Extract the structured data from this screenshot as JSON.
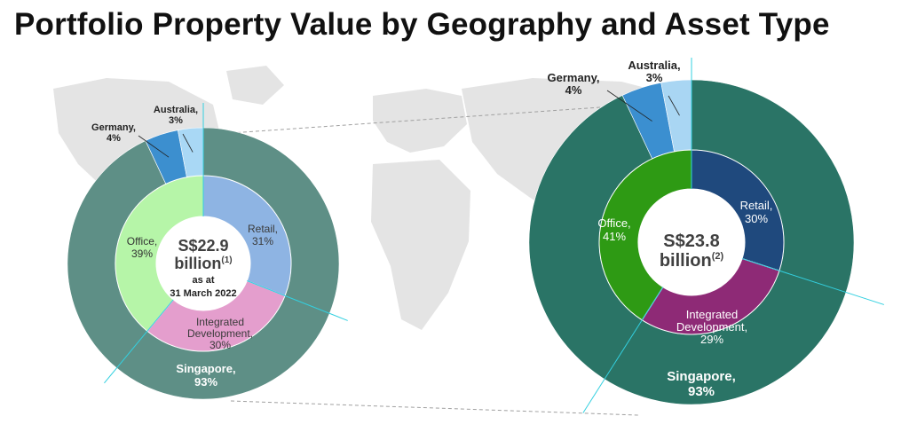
{
  "title": "Portfolio Property Value by Geography and Asset Type",
  "colors": {
    "left_singapore": "#5e8f86",
    "left_germany": "#3c8fcf",
    "left_australia": "#a9d8f5",
    "left_retail": "#8eb4e3",
    "left_integrated": "#e49ecd",
    "left_office": "#b6f5a8",
    "right_singapore": "#2a7466",
    "right_germany": "#3b8fd0",
    "right_australia": "#a9d6f3",
    "right_retail": "#1f497d",
    "right_integrated": "#8e2a76",
    "right_office": "#2e9a14",
    "map": "#e4e4e4"
  },
  "chart_data": [
    {
      "type": "pie",
      "variant": "nested-donut",
      "title": "",
      "center_text": {
        "value": "S$22.9",
        "unit": "billion",
        "note": "(1)",
        "sub1": "as at",
        "sub2": "31 March 2022"
      },
      "outer_ring": {
        "dimension": "Geography",
        "slices": [
          {
            "name": "Singapore",
            "value": 93,
            "label": "Singapore,",
            "pct_label": "93%"
          },
          {
            "name": "Germany",
            "value": 4,
            "label": "Germany,",
            "pct_label": "4%"
          },
          {
            "name": "Australia",
            "value": 3,
            "label": "Australia,",
            "pct_label": "3%"
          }
        ]
      },
      "inner_ring": {
        "dimension": "Asset Type",
        "slices": [
          {
            "name": "Retail",
            "value": 31,
            "label": "Retail,",
            "pct_label": "31%"
          },
          {
            "name": "Integrated Development",
            "value": 30,
            "label": "Integrated",
            "label2": "Development,",
            "pct_label": "30%"
          },
          {
            "name": "Office",
            "value": 39,
            "label": "Office,",
            "pct_label": "39%"
          }
        ]
      }
    },
    {
      "type": "pie",
      "variant": "nested-donut",
      "title": "",
      "center_text": {
        "value": "S$23.8",
        "unit": "billion",
        "note": "(2)"
      },
      "outer_ring": {
        "dimension": "Geography",
        "slices": [
          {
            "name": "Singapore",
            "value": 93,
            "label": "Singapore,",
            "pct_label": "93%"
          },
          {
            "name": "Germany",
            "value": 4,
            "label": "Germany,",
            "pct_label": "4%"
          },
          {
            "name": "Australia",
            "value": 3,
            "label": "Australia,",
            "pct_label": "3%"
          }
        ]
      },
      "inner_ring": {
        "dimension": "Asset Type",
        "slices": [
          {
            "name": "Retail",
            "value": 30,
            "label": "Retail,",
            "pct_label": "30%"
          },
          {
            "name": "Integrated Development",
            "value": 29,
            "label": "Integrated",
            "label2": "Development,",
            "pct_label": "29%"
          },
          {
            "name": "Office",
            "value": 41,
            "label": "Office,",
            "pct_label": "41%"
          }
        ]
      }
    }
  ]
}
